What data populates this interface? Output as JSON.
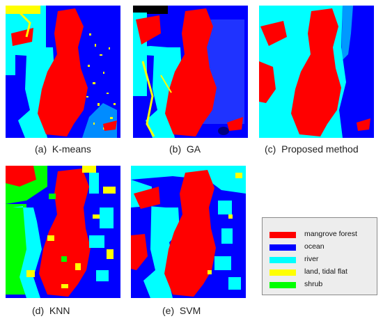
{
  "colors": {
    "mangrove_forest": "#ff0000",
    "ocean": "#0000ff",
    "river": "#00ffff",
    "land_tidal_flat": "#ffff00",
    "shrub": "#00ff00",
    "black": "#000000"
  },
  "panels": [
    {
      "caption": "(a)  K-means"
    },
    {
      "caption": "(b)  GA"
    },
    {
      "caption": "(c)  Proposed method"
    },
    {
      "caption": "(d)  KNN"
    },
    {
      "caption": "(e)  SVM"
    }
  ],
  "legend": {
    "items": [
      {
        "label": "mangrove forest",
        "color": "#ff0000"
      },
      {
        "label": "ocean",
        "color": "#0000ff"
      },
      {
        "label": "river",
        "color": "#00ffff"
      },
      {
        "label": "land, tidal flat",
        "color": "#ffff00"
      },
      {
        "label": "shrub",
        "color": "#00ff00"
      }
    ]
  }
}
